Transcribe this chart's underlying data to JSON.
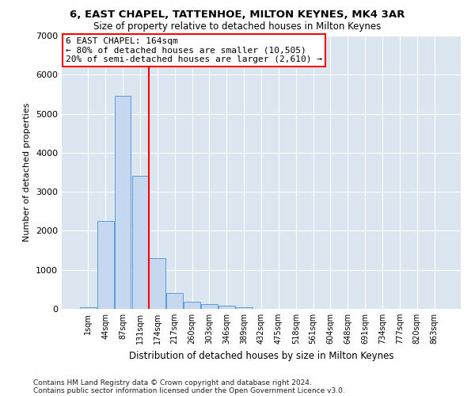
{
  "title1": "6, EAST CHAPEL, TATTENHOE, MILTON KEYNES, MK4 3AR",
  "title2": "Size of property relative to detached houses in Milton Keynes",
  "xlabel": "Distribution of detached houses by size in Milton Keynes",
  "ylabel": "Number of detached properties",
  "footnote1": "Contains HM Land Registry data © Crown copyright and database right 2024.",
  "footnote2": "Contains public sector information licensed under the Open Government Licence v3.0.",
  "bar_labels": [
    "1sqm",
    "44sqm",
    "87sqm",
    "131sqm",
    "174sqm",
    "217sqm",
    "260sqm",
    "303sqm",
    "346sqm",
    "389sqm",
    "432sqm",
    "475sqm",
    "518sqm",
    "561sqm",
    "604sqm",
    "648sqm",
    "691sqm",
    "734sqm",
    "777sqm",
    "820sqm",
    "863sqm"
  ],
  "bar_values": [
    50,
    2250,
    5450,
    3400,
    1300,
    400,
    175,
    125,
    75,
    50,
    10,
    0,
    0,
    0,
    0,
    0,
    0,
    0,
    0,
    0,
    0
  ],
  "bar_color": "#c5d8f0",
  "bar_edge_color": "#5b9bd5",
  "vline_x": 3.5,
  "vline_color": "red",
  "annotation_line1": "6 EAST CHAPEL: 164sqm",
  "annotation_line2": "← 80% of detached houses are smaller (10,505)",
  "annotation_line3": "20% of semi-detached houses are larger (2,610) →",
  "annotation_box_facecolor": "white",
  "annotation_box_edgecolor": "red",
  "ylim": [
    0,
    7000
  ],
  "yticks": [
    0,
    1000,
    2000,
    3000,
    4000,
    5000,
    6000,
    7000
  ],
  "plot_bg_color": "#dce6f1",
  "grid_color": "white"
}
